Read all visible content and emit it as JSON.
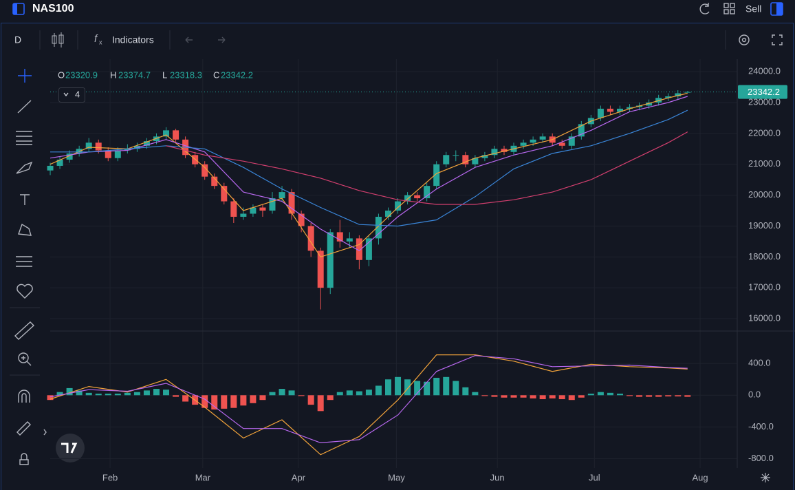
{
  "header": {
    "symbol": "NAS100",
    "action": "Sell"
  },
  "toolbar": {
    "interval": "D",
    "indicators": "Indicators"
  },
  "legend": {
    "ohlc_labels": [
      "O",
      "H",
      "L",
      "C"
    ],
    "indicator_count": 4
  },
  "chart_data": [
    {
      "type": "candlestick",
      "up_color": "#26a69a",
      "down_color": "#ef5350",
      "grid": true,
      "xlim": [
        -1,
        142
      ],
      "ylim": [
        15600,
        24270
      ],
      "xticks": [
        {
          "value": 12.4,
          "label": "Feb"
        },
        {
          "value": 31.6,
          "label": "Mar"
        },
        {
          "value": 51.4,
          "label": "Apr"
        },
        {
          "value": 71.7,
          "label": "May"
        },
        {
          "value": 92.6,
          "label": "Jun"
        },
        {
          "value": 112.7,
          "label": "Jul"
        },
        {
          "value": 134.6,
          "label": "Aug"
        }
      ],
      "yticks": [
        {
          "value": 16000,
          "label": "16000.0"
        },
        {
          "value": 17000,
          "label": "17000.0"
        },
        {
          "value": 18000,
          "label": "18000.0"
        },
        {
          "value": 19000,
          "label": "19000.0"
        },
        {
          "value": 20000,
          "label": "20000.0"
        },
        {
          "value": 21000,
          "label": "21000.0"
        },
        {
          "value": 22000,
          "label": "22000.0"
        },
        {
          "value": 23000,
          "label": "23000.0"
        },
        {
          "value": 24000,
          "label": "24000.0"
        }
      ],
      "x": [
        0,
        2,
        4,
        6,
        8,
        10,
        12,
        14,
        16,
        18,
        20,
        22,
        24,
        26,
        28,
        30,
        32,
        34,
        36,
        38,
        40,
        42,
        44,
        46,
        48,
        50,
        52,
        54,
        56,
        58,
        60,
        62,
        64,
        66,
        68,
        70,
        72,
        74,
        76,
        78,
        80,
        82,
        84,
        86,
        88,
        90,
        92,
        94,
        96,
        98,
        100,
        102,
        104,
        106,
        108,
        110,
        112,
        114,
        116,
        118,
        120,
        122,
        124,
        126,
        128,
        130,
        132
      ],
      "open": [
        20800,
        20950,
        21150,
        21350,
        21500,
        21700,
        21450,
        21200,
        21450,
        21500,
        21600,
        21750,
        21900,
        22100,
        21800,
        21300,
        21000,
        20600,
        20300,
        19800,
        19300,
        19400,
        19600,
        19500,
        19900,
        20100,
        19400,
        19000,
        18200,
        17000,
        18800,
        18500,
        18600,
        17900,
        18600,
        19300,
        19500,
        19800,
        20000,
        19900,
        20300,
        21000,
        21300,
        21300,
        21000,
        21200,
        21300,
        21500,
        21400,
        21600,
        21700,
        21800,
        21900,
        21700,
        21600,
        21900,
        22300,
        22500,
        22800,
        22700,
        22800,
        22850,
        22900,
        23000,
        23150,
        23200,
        23320.9
      ],
      "high": [
        21050,
        21250,
        21450,
        21600,
        21850,
        21800,
        21550,
        21550,
        21650,
        21700,
        21850,
        22000,
        22200,
        22150,
        21900,
        21400,
        21100,
        20700,
        20400,
        19900,
        19600,
        19700,
        19700,
        20100,
        20300,
        20200,
        19500,
        19100,
        18300,
        18900,
        19200,
        18800,
        18700,
        18700,
        19400,
        19600,
        19900,
        20100,
        20100,
        20400,
        21100,
        21400,
        21450,
        21400,
        21300,
        21400,
        21600,
        21600,
        21700,
        21800,
        21900,
        22000,
        22000,
        21800,
        22000,
        22400,
        22600,
        22900,
        22900,
        22900,
        22950,
        23000,
        23100,
        23250,
        23300,
        23400,
        23374.7
      ],
      "low": [
        20650,
        20850,
        21050,
        21250,
        21400,
        21350,
        21100,
        21100,
        21350,
        21400,
        21500,
        21650,
        21800,
        21700,
        21200,
        20900,
        20500,
        20200,
        19700,
        19100,
        19200,
        19300,
        19300,
        19400,
        19800,
        19200,
        18800,
        18000,
        16300,
        16800,
        18300,
        18300,
        17600,
        17700,
        18400,
        19200,
        19400,
        19700,
        19800,
        19800,
        20200,
        20900,
        21100,
        20900,
        20900,
        21100,
        21200,
        21300,
        21300,
        21500,
        21600,
        21700,
        21600,
        21500,
        21500,
        21800,
        22200,
        22400,
        22600,
        22600,
        22700,
        22750,
        22800,
        22900,
        23050,
        23100,
        23318.3
      ],
      "close": [
        20950,
        21150,
        21350,
        21500,
        21700,
        21450,
        21200,
        21450,
        21500,
        21600,
        21750,
        21900,
        22100,
        21800,
        21300,
        21000,
        20600,
        20300,
        19800,
        19300,
        19400,
        19600,
        19500,
        19900,
        20100,
        19400,
        19000,
        18200,
        17000,
        18800,
        18500,
        18600,
        17900,
        18600,
        19300,
        19500,
        19800,
        20000,
        19900,
        20300,
        21000,
        21300,
        21300,
        21000,
        21200,
        21300,
        21500,
        21400,
        21600,
        21700,
        21800,
        21900,
        21700,
        21600,
        21900,
        22300,
        22500,
        22800,
        22700,
        22800,
        22850,
        22900,
        23000,
        23150,
        23200,
        23300,
        23342.2
      ],
      "series": [
        {
          "color": "#f2a33a",
          "x": [
            0,
            8,
            16,
            24,
            32,
            40,
            48,
            56,
            64,
            72,
            80,
            88,
            96,
            104,
            112,
            120,
            128,
            132
          ],
          "values": [
            21000,
            21550,
            21500,
            21950,
            20900,
            19500,
            19900,
            18000,
            18400,
            19600,
            20700,
            21200,
            21500,
            21800,
            22400,
            22800,
            23150,
            23300
          ]
        },
        {
          "color": "#b868f0",
          "x": [
            0,
            8,
            16,
            24,
            32,
            40,
            48,
            56,
            64,
            72,
            80,
            88,
            96,
            104,
            112,
            120,
            128,
            132
          ],
          "values": [
            21200,
            21400,
            21450,
            21800,
            21400,
            20100,
            19800,
            18900,
            18200,
            19300,
            20200,
            20900,
            21300,
            21600,
            22100,
            22700,
            23000,
            23200
          ]
        },
        {
          "color": "#3a86d9",
          "x": [
            0,
            8,
            16,
            24,
            32,
            40,
            48,
            56,
            64,
            72,
            80,
            88,
            96,
            104,
            112,
            120,
            128,
            132
          ],
          "values": [
            21400,
            21400,
            21500,
            21600,
            21500,
            20900,
            20200,
            19600,
            19050,
            19000,
            19200,
            19950,
            20850,
            21350,
            21600,
            22000,
            22450,
            22750
          ]
        },
        {
          "color": "#d43f6f",
          "x": [
            0,
            8,
            16,
            24,
            32,
            40,
            48,
            56,
            64,
            72,
            80,
            88,
            96,
            104,
            112,
            120,
            128,
            132
          ],
          "values": [
            null,
            null,
            null,
            21600,
            21300,
            21100,
            20850,
            20550,
            20150,
            19850,
            19700,
            19700,
            19850,
            20100,
            20500,
            21100,
            21700,
            22050
          ]
        }
      ]
    },
    {
      "type": "macd",
      "up_color": "#26a69a",
      "down_color": "#ef5350",
      "grid": true,
      "xlim": [
        -1,
        142
      ],
      "ylim": [
        -918,
        758
      ],
      "yticks": [
        {
          "value": -800,
          "label": "-800.0"
        },
        {
          "value": -400,
          "label": "-400.0"
        },
        {
          "value": 0,
          "label": "0.0"
        },
        {
          "value": 400,
          "label": "400.0"
        }
      ],
      "x": [
        0,
        2,
        4,
        6,
        8,
        10,
        12,
        14,
        16,
        18,
        20,
        22,
        24,
        26,
        28,
        30,
        32,
        34,
        36,
        38,
        40,
        42,
        44,
        46,
        48,
        50,
        52,
        54,
        56,
        58,
        60,
        62,
        64,
        66,
        68,
        70,
        72,
        74,
        76,
        78,
        80,
        82,
        84,
        86,
        88,
        90,
        92,
        94,
        96,
        98,
        100,
        102,
        104,
        106,
        108,
        110,
        112,
        114,
        116,
        118,
        120,
        122,
        124,
        126,
        128,
        130,
        132
      ],
      "values": [
        -60,
        40,
        90,
        60,
        30,
        20,
        20,
        20,
        30,
        40,
        60,
        80,
        70,
        -20,
        -80,
        -120,
        -160,
        -180,
        -170,
        -160,
        -130,
        -100,
        -60,
        40,
        80,
        60,
        -10,
        -120,
        -200,
        -60,
        40,
        60,
        50,
        70,
        120,
        200,
        230,
        200,
        180,
        170,
        220,
        230,
        180,
        100,
        40,
        -10,
        -20,
        -30,
        -30,
        -30,
        -40,
        -50,
        -40,
        -50,
        -60,
        -30,
        20,
        40,
        30,
        20,
        -10,
        -20,
        -20,
        -20,
        -15,
        -15,
        -20
      ],
      "series": [
        {
          "color": "#f2a33a",
          "x": [
            0,
            8,
            16,
            24,
            32,
            40,
            48,
            56,
            64,
            72,
            80,
            88,
            96,
            104,
            112,
            120,
            128,
            132
          ],
          "values": [
            -50,
            110,
            40,
            200,
            -150,
            -540,
            -310,
            -750,
            -520,
            -60,
            510,
            510,
            430,
            300,
            390,
            360,
            345,
            330
          ]
        },
        {
          "color": "#b868f0",
          "x": [
            0,
            8,
            16,
            24,
            32,
            40,
            48,
            56,
            64,
            72,
            80,
            88,
            96,
            104,
            112,
            120,
            128,
            132
          ],
          "values": [
            -20,
            70,
            50,
            150,
            -50,
            -420,
            -420,
            -600,
            -560,
            -250,
            300,
            500,
            460,
            360,
            370,
            380,
            350,
            340
          ]
        }
      ]
    }
  ]
}
